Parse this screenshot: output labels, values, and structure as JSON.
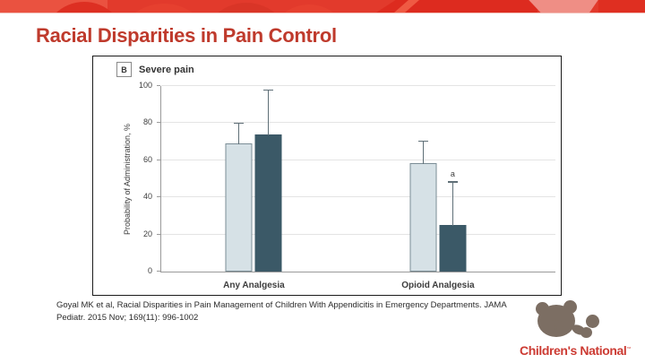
{
  "title": "Racial Disparities in Pain Control",
  "citation": "Goyal MK et al, Racial Disparities in Pain Management of Children With Appendicitis in Emergency Departments. JAMA Pediatr. 2015 Nov; 169(11): 996-1002",
  "logo": {
    "text": "Children's National",
    "tm": "™"
  },
  "colors": {
    "title_red": "#bf3a2c",
    "banner_red": "#e23a2c",
    "banner_dark_red": "#dd2b1f",
    "banner_pink": "#ef8e85",
    "logo_red": "#cc3b33",
    "bear_brown": "#7c6e63",
    "grid": "#e4e4e4",
    "axis": "#9a9a9a",
    "error_bar": "#5f6f77",
    "chart_text": "#3d3d3d"
  },
  "chart_data": {
    "type": "bar",
    "panel_label": "B",
    "panel_title": "Severe pain",
    "ylabel": "Probability of Administration, %",
    "xlabel": "",
    "ylim": [
      0,
      100
    ],
    "yticks": [
      0,
      20,
      40,
      60,
      80,
      100
    ],
    "grid": "horizontal-light",
    "legend": "none",
    "categories": [
      "Any Analgesia",
      "Opioid Analgesia"
    ],
    "series": [
      {
        "name": "light-bar-series",
        "color": "#d6e1e6",
        "border": "#7b8d96",
        "values": [
          69,
          58.5
        ],
        "error_top": [
          80,
          70.5
        ]
      },
      {
        "name": "dark-bar-series",
        "color": "#3b5967",
        "border": "#3b5967",
        "values": [
          74,
          25
        ],
        "error_top": [
          98,
          48.5
        ]
      }
    ],
    "annotations": [
      {
        "text": "a",
        "category_index": 1,
        "series_index": 1
      }
    ]
  }
}
